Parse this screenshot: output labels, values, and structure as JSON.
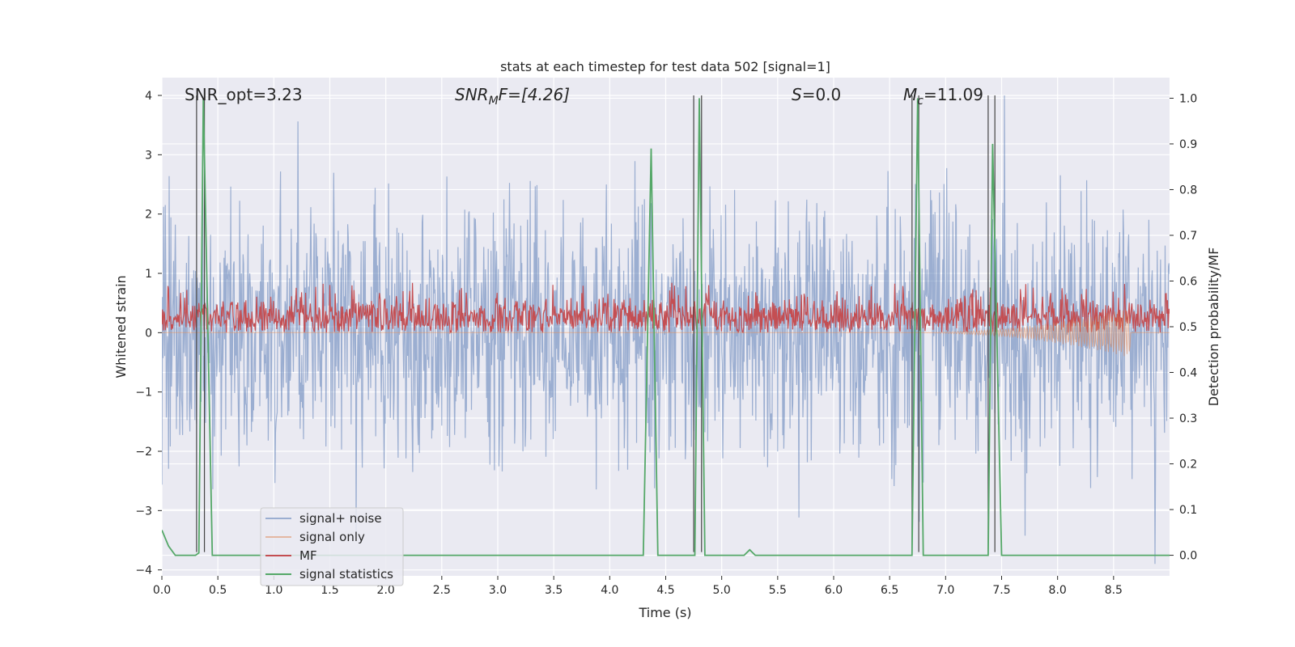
{
  "chart_data": {
    "type": "line",
    "title": "stats at each timestep for test data 502 [signal=1]",
    "xlabel": "Time (s)",
    "ylabel": "Whitened strain",
    "y2label": "Detection probability/MF",
    "xlim": [
      0.0,
      9.0
    ],
    "ylim": [
      -4.1,
      4.3
    ],
    "y2lim": [
      -0.045,
      1.045
    ],
    "xticks": [
      "0.0",
      "0.5",
      "1.0",
      "1.5",
      "2.0",
      "2.5",
      "3.0",
      "3.5",
      "4.0",
      "4.5",
      "5.0",
      "5.5",
      "6.0",
      "6.5",
      "7.0",
      "7.5",
      "8.0",
      "8.5"
    ],
    "yticks": [
      "4",
      "3",
      "2",
      "1",
      "0",
      "−1",
      "−2",
      "−3",
      "−4"
    ],
    "y2ticks": [
      "1.0",
      "0.9",
      "0.8",
      "0.7",
      "0.6",
      "0.5",
      "0.4",
      "0.3",
      "0.2",
      "0.1",
      "0.0"
    ],
    "annotations": {
      "snr_opt": "SNR_opt=3.23",
      "snr_mf_main": "SNR",
      "snr_mf_sub": "M",
      "snr_mf_rest": "F=[4.26]",
      "s_main": "S",
      "s_rest": "=0.0",
      "mc_main": "M",
      "mc_sub": "c",
      "mc_rest": "=11.09"
    },
    "legend": {
      "position": "lower-left",
      "entries": [
        {
          "label": "signal+ noise",
          "color": "#4C72B0"
        },
        {
          "label": "signal only",
          "color": "#DD8452"
        },
        {
          "label": "MF",
          "color": "#C44E52"
        },
        {
          "label": "signal statistics",
          "color": "#55A868"
        }
      ]
    },
    "grid": true,
    "series": [
      {
        "name": "signal statistics",
        "color": "#55A868",
        "axis": "right",
        "x": [
          0.0,
          0.06,
          0.12,
          0.2,
          0.3,
          0.33,
          0.37,
          0.45,
          4.3,
          4.37,
          4.43,
          4.76,
          4.8,
          4.85,
          5.2,
          5.25,
          5.3,
          6.7,
          6.75,
          6.8,
          7.38,
          7.42,
          7.5,
          9.0
        ],
        "y": [
          0.055,
          0.02,
          0.0,
          0.0,
          0.0,
          0.005,
          1.0,
          0.0,
          0.0,
          0.89,
          0.0,
          0.0,
          1.0,
          0.0,
          0.0,
          0.012,
          0.0,
          0.0,
          1.0,
          0.0,
          0.0,
          0.9,
          0.0,
          0.0
        ]
      },
      {
        "name": "signal+ noise",
        "color": "#4C72B0",
        "axis": "left",
        "noise_envelope": {
          "typical_max": 2.4,
          "typical_min": -2.4,
          "peak_max": 4.0,
          "peak_min": -3.9
        }
      },
      {
        "name": "MF",
        "color": "#C44E52",
        "axis": "left",
        "band": {
          "min": 0.0,
          "typical_max": 0.55,
          "peak_max": 0.85
        }
      },
      {
        "name": "signal only",
        "color": "#DD8452",
        "axis": "left",
        "chirp": {
          "start": 6.6,
          "end": 8.65,
          "peak_amplitude": -0.42
        }
      }
    ],
    "vertical_markers": [
      0.31,
      0.38,
      4.75,
      4.82,
      6.7,
      6.76,
      7.38,
      7.44
    ],
    "vertical_marker_range": [
      -3.7,
      4.0
    ]
  }
}
